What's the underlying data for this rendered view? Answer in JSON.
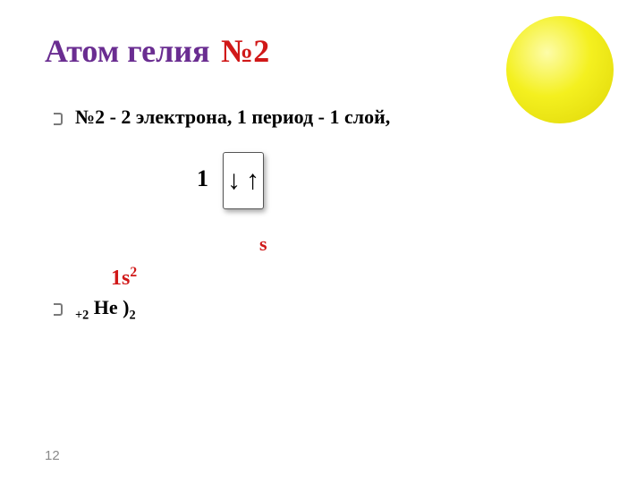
{
  "title": {
    "part1": {
      "text": "Атом гелия",
      "color": "#6a2d91"
    },
    "part2": {
      "text": "№2",
      "color": "#d01818"
    }
  },
  "bullet1": {
    "text": "№2 - 2 электрона, 1 период - 1 слой,",
    "color": "#111111"
  },
  "diagram": {
    "level_label": "1",
    "level_color": "#111111",
    "arrow_down": "↓",
    "arrow_up": "↑",
    "arrow_color": "#333333",
    "box_border": "#555555"
  },
  "s_label": {
    "text": "s",
    "color": "#d01818"
  },
  "config": {
    "base": "1s",
    "sup": "2",
    "color": "#d01818"
  },
  "helium": {
    "pre_sub": "+2",
    "mid": " He )",
    "post_sub": "2",
    "color": "#111111"
  },
  "page_number": "12",
  "ball": {
    "gradient_inner": "#fdfca9",
    "gradient_mid": "#f4f01f",
    "gradient_outer": "#d6cf0a"
  },
  "background_color": "#ffffff"
}
